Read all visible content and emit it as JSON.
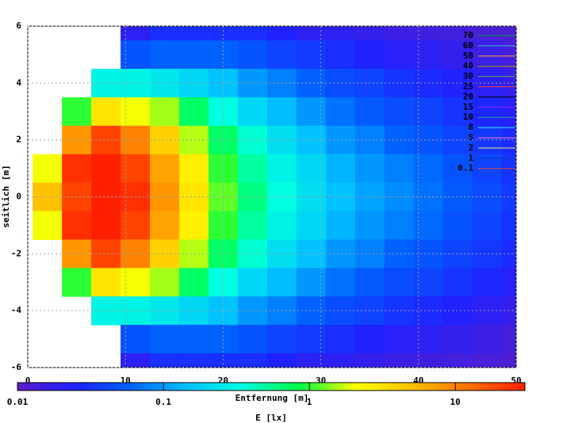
{
  "chart_data": {
    "type": "heatmap",
    "xlabel": "Entfernung [m]",
    "ylabel": "seitlich [m]",
    "cblabel": "E [lx]",
    "xlim": [
      0,
      50
    ],
    "ylim": [
      -6,
      6
    ],
    "xticks": [
      0,
      10,
      20,
      30,
      40,
      50
    ],
    "yticks": [
      -6,
      -4,
      -2,
      0,
      2,
      4,
      6
    ],
    "grid": true,
    "cbrange": [
      0.01,
      30
    ],
    "cbscale": "log",
    "cbticks": [
      0.01,
      0.1,
      1,
      10
    ],
    "palette": [
      "#5a1ec8",
      "#2020ff",
      "#0060ff",
      "#00c0ff",
      "#00ffe0",
      "#00ff40",
      "#ffff00",
      "#ffc000",
      "#ff7000",
      "#ff2000"
    ],
    "x": [
      2,
      5,
      8,
      11,
      14,
      17,
      20,
      23,
      26,
      29,
      32,
      35,
      38,
      41,
      44,
      47,
      50
    ],
    "y": [
      6,
      5,
      4,
      3,
      2,
      1,
      0,
      -1,
      -2,
      -3,
      -4,
      -5,
      -6
    ],
    "z": [
      [
        null,
        null,
        null,
        0.02,
        0.03,
        0.03,
        0.03,
        0.03,
        0.025,
        0.02,
        0.02,
        0.018,
        0.016,
        0.015,
        0.014,
        0.013,
        0.012
      ],
      [
        null,
        null,
        null,
        0.05,
        0.06,
        0.06,
        0.06,
        0.05,
        0.04,
        0.035,
        0.03,
        0.025,
        0.022,
        0.02,
        0.018,
        0.016,
        0.014
      ],
      [
        null,
        null,
        0.3,
        0.3,
        0.25,
        0.2,
        0.15,
        0.1,
        0.08,
        0.06,
        0.045,
        0.04,
        0.032,
        0.028,
        0.024,
        0.02,
        0.018
      ],
      [
        null,
        1,
        3,
        2,
        1.5,
        0.7,
        0.35,
        0.2,
        0.14,
        0.1,
        0.07,
        0.055,
        0.045,
        0.04,
        0.032,
        0.027,
        0.022
      ],
      [
        null,
        8,
        20,
        10,
        4,
        1.6,
        0.7,
        0.38,
        0.22,
        0.15,
        0.1,
        0.08,
        0.06,
        0.05,
        0.04,
        0.034,
        0.028
      ],
      [
        2,
        25,
        35,
        20,
        7,
        2.6,
        1,
        0.5,
        0.3,
        0.2,
        0.13,
        0.1,
        0.08,
        0.065,
        0.05,
        0.04,
        0.032
      ],
      [
        5,
        20,
        40,
        25,
        8,
        3,
        1.2,
        0.6,
        0.35,
        0.22,
        0.15,
        0.11,
        0.09,
        0.07,
        0.055,
        0.045,
        0.035
      ],
      [
        2,
        25,
        35,
        20,
        7,
        2.6,
        1,
        0.5,
        0.3,
        0.2,
        0.13,
        0.1,
        0.08,
        0.065,
        0.05,
        0.04,
        0.032
      ],
      [
        null,
        8,
        20,
        10,
        4,
        1.6,
        0.7,
        0.38,
        0.22,
        0.15,
        0.1,
        0.08,
        0.06,
        0.05,
        0.04,
        0.034,
        0.028
      ],
      [
        null,
        1,
        3,
        2,
        1.5,
        0.7,
        0.35,
        0.2,
        0.14,
        0.1,
        0.07,
        0.055,
        0.045,
        0.04,
        0.032,
        0.027,
        0.022
      ],
      [
        null,
        null,
        0.3,
        0.3,
        0.25,
        0.2,
        0.15,
        0.1,
        0.08,
        0.06,
        0.045,
        0.04,
        0.032,
        0.028,
        0.024,
        0.02,
        0.018
      ],
      [
        null,
        null,
        null,
        0.05,
        0.06,
        0.06,
        0.06,
        0.05,
        0.04,
        0.035,
        0.03,
        0.025,
        0.022,
        0.02,
        0.018,
        0.016,
        0.014
      ],
      [
        null,
        null,
        null,
        0.02,
        0.03,
        0.03,
        0.03,
        0.03,
        0.025,
        0.02,
        0.02,
        0.018,
        0.016,
        0.015,
        0.014,
        0.013,
        0.012
      ]
    ],
    "contours": [
      {
        "level": 70,
        "color": "#00a040"
      },
      {
        "level": 60,
        "color": "#40c0c0"
      },
      {
        "level": 50,
        "color": "#ffa040"
      },
      {
        "level": 40,
        "color": "#a0a000"
      },
      {
        "level": 30,
        "color": "#60a060"
      },
      {
        "level": 25,
        "color": "#ff4040"
      },
      {
        "level": 20,
        "color": "#000000"
      },
      {
        "level": 15,
        "color": "#a020f0"
      },
      {
        "level": 10,
        "color": "#20a0a0"
      },
      {
        "level": 8,
        "color": "#40e0ff"
      },
      {
        "level": 5,
        "color": "#ff80c0"
      },
      {
        "level": 2,
        "color": "#f0e080"
      },
      {
        "level": 1,
        "color": "#0040a0"
      },
      {
        "level": 0.1,
        "color": "#e04040"
      }
    ]
  }
}
